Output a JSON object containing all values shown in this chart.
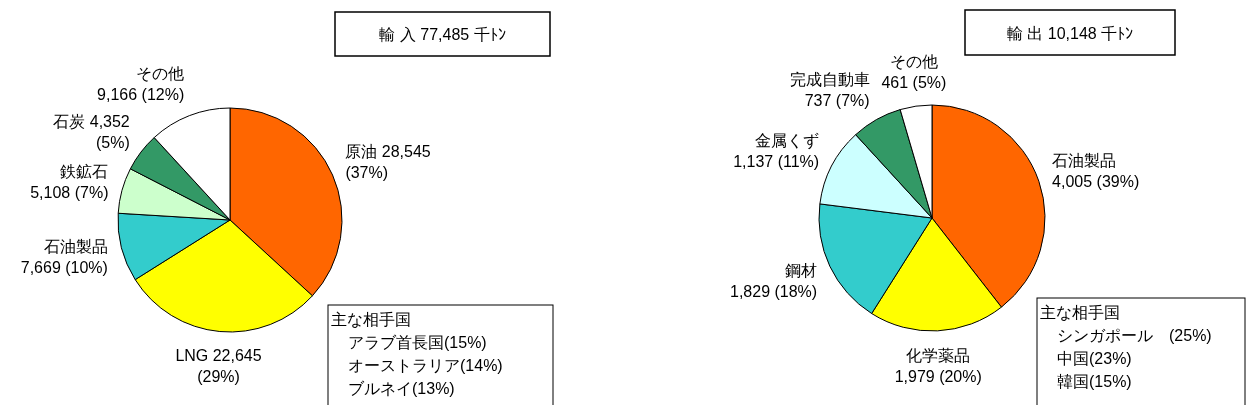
{
  "chart_data": [
    {
      "type": "pie",
      "title": "輸 入 77,485 千ﾄﾝ",
      "categories": [
        "原油",
        "LNG",
        "石油製品",
        "鉄鉱石",
        "石炭",
        "その他"
      ],
      "values": [
        28545,
        22645,
        7669,
        5108,
        4352,
        9166
      ],
      "value_labels": [
        "28,545\n(37%)",
        "22,645\n(29%)",
        "\n7,669 (10%)",
        "\n5,108 (7%)",
        "4,352\n(5%)",
        "\n9,166 (12%)"
      ],
      "colors": [
        "#ff6600",
        "#ffff00",
        "#33cccc",
        "#ccffcc",
        "#339966",
        "#ffffff"
      ],
      "annotations": [
        "主な相手国",
        "アラブ首長国(15%)",
        "オーストラリア(14%)",
        "ブルネイ(13%)"
      ]
    },
    {
      "type": "pie",
      "title": "輸 出 10,148 千ﾄﾝ",
      "categories": [
        "石油製品",
        "化学薬品",
        "鋼材",
        "金属くず",
        "完成自動車",
        "その他"
      ],
      "values": [
        4005,
        1979,
        1829,
        1137,
        737,
        461
      ],
      "value_labels": [
        "\n4,005  (39%)",
        "\n1,979 (20%)",
        "\n1,829 (18%)",
        "\n1,137 (11%)",
        "\n737 (7%)",
        "\n461 (5%)"
      ],
      "colors": [
        "#ff6600",
        "#ffff00",
        "#33cccc",
        "#ccffff",
        "#339966",
        "#ffffff"
      ],
      "annotations": [
        "主な相手国",
        "シンガポール　(25%)",
        "中国(23%)",
        "韓国(15%)"
      ]
    }
  ]
}
